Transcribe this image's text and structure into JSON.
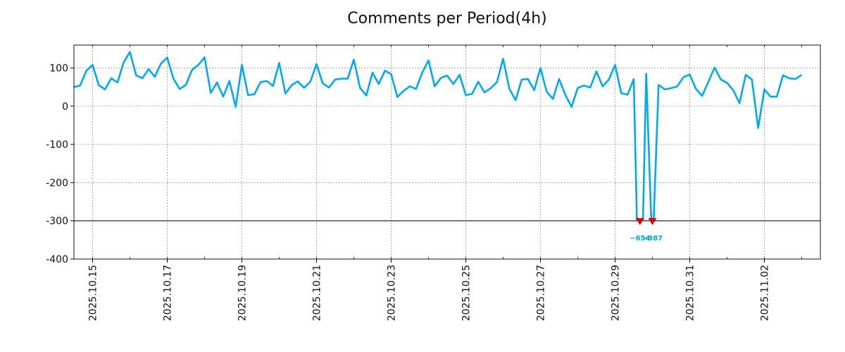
{
  "chart_data": {
    "type": "line",
    "title": "Comments per Period(4h)",
    "xlabel": "",
    "ylabel": "",
    "period_hours": 4,
    "x_start": "2025-10-14 12:00",
    "x_end": "2025-11-03 12:00",
    "ylim": [
      -400,
      160
    ],
    "y_ticks": [
      100,
      0,
      -100,
      -200,
      -300,
      -400
    ],
    "y_tick_labels": [
      "100",
      "0",
      "-100",
      "-200",
      "-300",
      "-400"
    ],
    "x_ticks": [
      "2025.10.15",
      "2025.10.17",
      "2025.10.19",
      "2025.10.21",
      "2025.10.23",
      "2025.10.25",
      "2025.10.27",
      "2025.10.29",
      "2025.10.31",
      "2025.11.02"
    ],
    "grid": true,
    "reference_line": -300,
    "series": [
      {
        "name": "",
        "color": "#00aaee",
        "values": [
          50,
          54,
          93,
          108,
          55,
          44,
          73,
          62,
          115,
          142,
          81,
          73,
          97,
          77,
          112,
          127,
          72,
          45,
          56,
          95,
          108,
          128,
          35,
          62,
          25,
          66,
          -2,
          108,
          29,
          31,
          63,
          66,
          53,
          113,
          33,
          55,
          65,
          48,
          64,
          110,
          60,
          49,
          70,
          72,
          72,
          122,
          48,
          28,
          88,
          58,
          93,
          84,
          24,
          40,
          52,
          45,
          88,
          120,
          52,
          74,
          80,
          58,
          82,
          29,
          32,
          64,
          36,
          47,
          63,
          124,
          46,
          16,
          70,
          71,
          42,
          100,
          38,
          19,
          71,
          30,
          -2,
          48,
          54,
          49,
          91,
          52,
          70,
          108,
          34,
          30,
          71,
          -654,
          85,
          -387,
          56,
          44,
          47,
          52,
          76,
          83,
          45,
          27,
          64,
          101,
          70,
          61,
          42,
          8,
          82,
          70,
          -57,
          44,
          25,
          25,
          81,
          73,
          71,
          82
        ]
      }
    ],
    "annotations": [
      {
        "x_index": 91,
        "label": "−654",
        "marker": "red-down-triangle"
      },
      {
        "x_index": 93,
        "label": "−387",
        "marker": "red-down-triangle"
      }
    ],
    "colors": {
      "line": "#00aaee",
      "marker": "#dd0000",
      "annotation_text": "#00aacc"
    }
  }
}
